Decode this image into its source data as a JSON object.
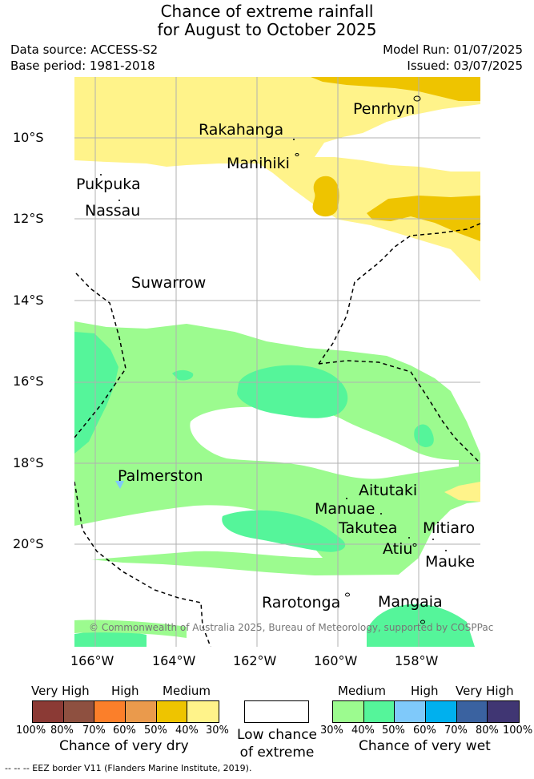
{
  "title": {
    "line1": "Chance of extreme rainfall",
    "line2": "for August to October 2025"
  },
  "meta": {
    "data_source": "Data source: ACCESS-S2",
    "base_period": "Base period: 1981-2018",
    "model_run": "Model Run: 01/07/2025",
    "issued": "Issued: 03/07/2025"
  },
  "map": {
    "lat_ticks": [
      "10°S",
      "12°S",
      "14°S",
      "16°S",
      "18°S",
      "20°S"
    ],
    "lon_ticks": [
      "166°W",
      "164°W",
      "162°W",
      "160°W",
      "158°W"
    ],
    "islands": {
      "penrhyn": "Penrhyn",
      "rakahanga": "Rakahanga",
      "manihiki": "Manihiki",
      "pukpuka": "Pukpuka",
      "nassau": "Nassau",
      "suwarrow": "Suwarrow",
      "palmerston": "Palmerston",
      "aitutaki": "Aitutaki",
      "manuae": "Manuae",
      "takutea": "Takutea",
      "mitiaro": "Mitiaro",
      "atiu": "Atiu",
      "mauke": "Mauke",
      "rarotonga": "Rarotonga",
      "mangaia": "Mangaia"
    },
    "copyright": "© Commonwealth of Australia 2025, Bureau of Meteorology, supported by COSPPac"
  },
  "legend": {
    "dry": {
      "headers": [
        "Very High",
        "High",
        "Medium"
      ],
      "colors": [
        "#8b3a35",
        "#8e5040",
        "#fb7f2a",
        "#ea9a4c",
        "#eec400",
        "#fff38a"
      ],
      "percents": [
        "100%",
        "80%",
        "70%",
        "60%",
        "50%",
        "40%",
        "30%"
      ],
      "caption": "Chance of very dry"
    },
    "low": {
      "caption_line1": "Low chance",
      "caption_line2": "of extreme"
    },
    "wet": {
      "headers": [
        "Medium",
        "High",
        "Very High"
      ],
      "colors": [
        "#9cfb8f",
        "#55f59a",
        "#7fc9fa",
        "#00b0ee",
        "#3a62a0",
        "#403673"
      ],
      "percents": [
        "30%",
        "40%",
        "50%",
        "60%",
        "70%",
        "80%",
        "100%"
      ],
      "caption": "Chance of very wet"
    }
  },
  "footer": "-- -- -- EEZ border V11 (Flanders Marine Institute, 2019)."
}
